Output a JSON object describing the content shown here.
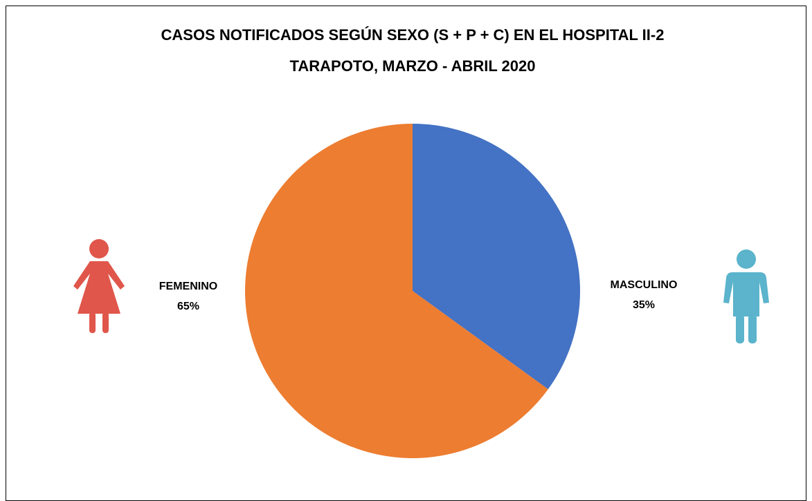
{
  "chart_data": {
    "type": "pie",
    "title": [
      "CASOS NOTIFICADOS SEGÚN SEXO (S + P + C) EN EL HOSPITAL II-2",
      "TARAPOTO, MARZO - ABRIL 2020"
    ],
    "categories": [
      "MASCULINO",
      "FEMENINO"
    ],
    "values": [
      35,
      65
    ],
    "value_labels": [
      "35%",
      "65%"
    ],
    "colors": [
      "#4472c4",
      "#ed7d31"
    ]
  }
}
